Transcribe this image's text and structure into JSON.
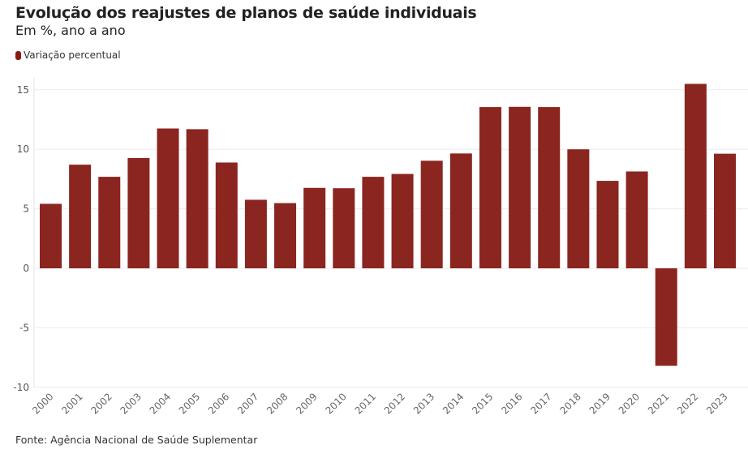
{
  "chart_data": {
    "type": "bar",
    "title": "Evolução dos reajustes de planos de saúde individuais",
    "subtitle": "Em %, ano a ano",
    "legend": [
      "Variação percentual"
    ],
    "legend_position": "top-left",
    "source": "Fonte: Agência Nacional de Saúde Suplementar",
    "categories": [
      "2000",
      "2001",
      "2002",
      "2003",
      "2004",
      "2005",
      "2006",
      "2007",
      "2008",
      "2009",
      "2010",
      "2011",
      "2012",
      "2013",
      "2014",
      "2015",
      "2016",
      "2017",
      "2018",
      "2019",
      "2020",
      "2021",
      "2022",
      "2023"
    ],
    "series": [
      {
        "name": "Variação percentual",
        "color": "#8b2520",
        "values": [
          5.42,
          8.71,
          7.69,
          9.27,
          11.75,
          11.69,
          8.89,
          5.76,
          5.48,
          6.76,
          6.73,
          7.69,
          7.93,
          9.04,
          9.65,
          13.55,
          13.57,
          13.55,
          10.0,
          7.35,
          8.14,
          -8.19,
          15.5,
          9.63
        ]
      }
    ],
    "ylim": [
      -10,
      15
    ],
    "yticks": [
      -10,
      -5,
      0,
      5,
      10,
      15
    ],
    "grid": true
  }
}
